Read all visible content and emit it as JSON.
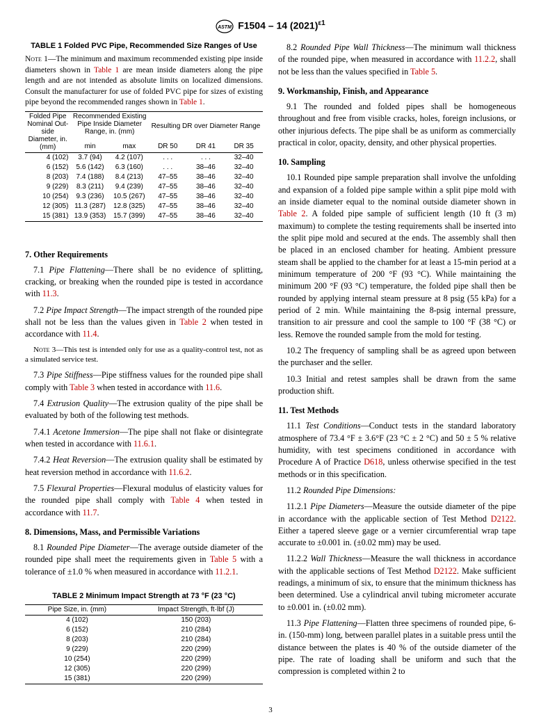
{
  "header": {
    "standard": "F1504 – 14 (2021)",
    "eps": "ε1"
  },
  "table1": {
    "title": "TABLE 1 Folded PVC Pipe, Recommended Size Ranges of Use",
    "note_label": "Note 1",
    "note_text": "—The minimum and maximum recommended existing pipe inside diameters shown in ",
    "note_text2": " are mean inside diameters along the pipe length and are not intended as absolute limits on localized dimensions. Consult the manufacturer for use of folded PVC pipe for sizes of existing pipe beyond the recommended ranges shown in ",
    "t1ref": "Table 1",
    "headers": {
      "h1a": "Folded Pipe",
      "h1b": "Nominal Out-",
      "h1c": "side",
      "h1d": "Diameter, in.",
      "h1e": "(mm)",
      "h2a": "Recommended Existing",
      "h2b": "Pipe Inside Diameter",
      "h2c": "Range, in. (mm)",
      "h3": "Resulting DR over Diameter Range",
      "min": "min",
      "max": "max",
      "dr50": "DR 50",
      "dr41": "DR 41",
      "dr35": "DR 35"
    },
    "rows": [
      {
        "d": "4 (102)",
        "min": "3.7 (94)",
        "max": "4.2 (107)",
        "dr50": ". . .",
        "dr41": ". . .",
        "dr35": "32–40"
      },
      {
        "d": "6 (152)",
        "min": "5.6 (142)",
        "max": "6.3 (160)",
        "dr50": ". . .",
        "dr41": "38–46",
        "dr35": "32–40"
      },
      {
        "d": "8 (203)",
        "min": "7.4 (188)",
        "max": "8.4 (213)",
        "dr50": "47–55",
        "dr41": "38–46",
        "dr35": "32–40"
      },
      {
        "d": "9 (229)",
        "min": "8.3 (211)",
        "max": "9.4 (239)",
        "dr50": "47–55",
        "dr41": "38–46",
        "dr35": "32–40"
      },
      {
        "d": "10 (254)",
        "min": "9.3 (236)",
        "max": "10.5 (267)",
        "dr50": "47–55",
        "dr41": "38–46",
        "dr35": "32–40"
      },
      {
        "d": "12 (305)",
        "min": "11.3 (287)",
        "max": "12.8 (325)",
        "dr50": "47–55",
        "dr41": "38–46",
        "dr35": "32–40"
      },
      {
        "d": "15 (381)",
        "min": "13.9 (353)",
        "max": "15.7 (399)",
        "dr50": "47–55",
        "dr41": "38–46",
        "dr35": "32–40"
      }
    ]
  },
  "sec7": {
    "heading": "7.  Other Requirements",
    "p71a": "7.1 ",
    "p71t": "Pipe Flattening",
    "p71b": "—There shall be no evidence of splitting, cracking, or breaking when the rounded pipe is tested in accordance with ",
    "p71ref": "11.3",
    "p71c": ".",
    "p72a": "7.2 ",
    "p72t": "Pipe Impact Strength",
    "p72b": "—The impact strength of the rounded pipe shall not be less than the values given in ",
    "p72ref1": "Table 2",
    "p72c": " when tested in accordance with ",
    "p72ref2": "11.4",
    "p72d": ".",
    "note3label": "Note 3",
    "note3": "—This test is intended only for use as a quality-control test, not as a simulated service test.",
    "p73a": "7.3 ",
    "p73t": "Pipe Stiffness",
    "p73b": "—Pipe stiffness values for the rounded pipe shall comply with ",
    "p73ref1": "Table 3",
    "p73c": " when tested in accordance with ",
    "p73ref2": "11.6",
    "p73d": ".",
    "p74a": "7.4 ",
    "p74t": "Extrusion Quality",
    "p74b": "—The extrusion quality of the pipe shall be evaluated by both of the following test methods.",
    "p741a": "7.4.1 ",
    "p741t": "Acetone Immersion",
    "p741b": "—The pipe shall not flake or disintegrate when tested in accordance with ",
    "p741ref": "11.6.1",
    "p741c": ".",
    "p742a": "7.4.2 ",
    "p742t": "Heat Reversion",
    "p742b": "—The extrusion quality shall be estimated by heat reversion method in accordance with ",
    "p742ref": "11.6.2",
    "p742c": ".",
    "p75a": "7.5 ",
    "p75t": "Flexural Properties",
    "p75b": "—Flexural modulus of elasticity values for the rounded pipe shall comply with ",
    "p75ref1": "Table 4",
    "p75c": " when tested in accordance with ",
    "p75ref2": "11.7",
    "p75d": "."
  },
  "sec8": {
    "heading": "8.  Dimensions, Mass, and Permissible Variations",
    "p81a": "8.1 ",
    "p81t": "Rounded Pipe Diameter",
    "p81b": "—The average outside diameter of the rounded pipe shall meet the requirements given in ",
    "p81ref1": "Table 5",
    "p81c": " with a tolerance of ±1.0 % when measured in accordance with ",
    "p81ref2": "11.2.1",
    "p81d": ".",
    "p82a": "8.2 ",
    "p82t": "Rounded Pipe Wall Thickness",
    "p82b": "—The minimum wall thickness of the rounded pipe, when measured in accordance with ",
    "p82ref1": "11.2.2",
    "p82c": ", shall not be less than the values specified in ",
    "p82ref2": "Table 5",
    "p82d": "."
  },
  "table2": {
    "title": "TABLE 2 Minimum Impact Strength at 73 °F (23 °C)",
    "h1": "Pipe Size, in. (mm)",
    "h2": "Impact Strength, ft·lbf (J)",
    "rows": [
      {
        "s": "4 (102)",
        "v": "150 (203)"
      },
      {
        "s": "6 (152)",
        "v": "210 (284)"
      },
      {
        "s": "8 (203)",
        "v": "210 (284)"
      },
      {
        "s": "9 (229)",
        "v": "220 (299)"
      },
      {
        "s": "10 (254)",
        "v": "220 (299)"
      },
      {
        "s": "12 (305)",
        "v": "220 (299)"
      },
      {
        "s": "15 (381)",
        "v": "220 (299)"
      }
    ]
  },
  "sec9": {
    "heading": "9.  Workmanship, Finish, and Appearance",
    "p91": "9.1 The rounded and folded pipes shall be homogeneous throughout and free from visible cracks, holes, foreign inclusions, or other injurious defects. The pipe shall be as uniform as commercially practical in color, opacity, density, and other physical properties."
  },
  "sec10": {
    "heading": "10.  Sampling",
    "p101a": "10.1 Rounded pipe sample preparation shall involve the unfolding and expansion of a folded pipe sample within a split pipe mold with an inside diameter equal to the nominal outside diameter shown in ",
    "p101ref": "Table 2",
    "p101b": ". A folded pipe sample of sufficient length (10 ft (3 m) maximum) to complete the testing requirements shall be inserted into the split pipe mold and secured at the ends. The assembly shall then be placed in an enclosed chamber for heating. Ambient pressure steam shall be applied to the chamber for at least a 15-min period at a minimum temperature of 200 °F (93 °C). While maintaining the minimum 200 °F (93 °C) temperature, the folded pipe shall then be rounded by applying internal steam pressure at 8 psig (55 kPa) for a period of 2 min. While maintaining the 8-psig internal pressure, transition to air pressure and cool the sample to 100 °F (38 °C) or less. Remove the rounded sample from the mold for testing.",
    "p102": "10.2 The frequency of sampling shall be as agreed upon between the purchaser and the seller.",
    "p103": "10.3 Initial and retest samples shall be drawn from the same production shift."
  },
  "sec11": {
    "heading": "11.  Test Methods",
    "p111a": "11.1 ",
    "p111t": "Test Conditions",
    "p111b": "—Conduct tests in the standard laboratory atmosphere of 73.4 °F ± 3.6°F (23 °C ± 2 °C) and 50 ± 5 % relative humidity, with test specimens conditioned in accordance with Procedure A of Practice ",
    "p111ref": "D618",
    "p111c": ", unless otherwise specified in the test methods or in this specification.",
    "p112a": "11.2 ",
    "p112t": "Rounded Pipe Dimensions:",
    "p1121a": "11.2.1 ",
    "p1121t": "Pipe Diameters",
    "p1121b": "—Measure the outside diameter of the pipe in accordance with the applicable section of Test Method ",
    "p1121ref": "D2122",
    "p1121c": ". Either a tapered sleeve gage or a vernier circumferential wrap tape accurate to ±0.001 in. (±0.02 mm) may be used.",
    "p1122a": "11.2.2 ",
    "p1122t": "Wall Thickness",
    "p1122b": "—Measure the wall thickness in accordance with the applicable sections of Test Method ",
    "p1122ref": "D2122",
    "p1122c": ". Make sufficient readings, a minimum of six, to ensure that the minimum thickness has been determined. Use a cylindrical anvil tubing micrometer accurate to ±0.001 in. (±0.02 mm).",
    "p113a": "11.3 ",
    "p113t": "Pipe Flattening",
    "p113b": "—Flatten three specimens of rounded pipe, 6-in. (150-mm) long, between parallel plates in a suitable press until the distance between the plates is 40 % of the outside diameter of the pipe. The rate of loading shall be uniform and such that the compression is completed within 2 to"
  },
  "page": "3"
}
